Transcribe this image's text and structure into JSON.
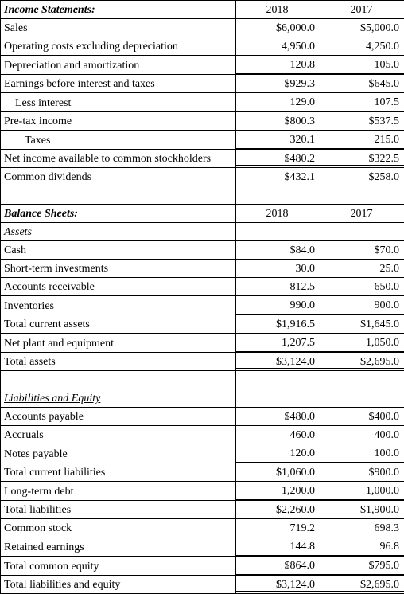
{
  "income": {
    "title": "Income Statements:",
    "col1": "2018",
    "col2": "2017",
    "rows": {
      "sales": {
        "label": "Sales",
        "v1": "$6,000.0",
        "v2": "$5,000.0"
      },
      "opex": {
        "label": "Operating costs excluding depreciation",
        "v1": "4,950.0",
        "v2": "4,250.0"
      },
      "dep": {
        "label": "Depreciation and amortization",
        "v1": "120.8",
        "v2": "105.0"
      },
      "ebit": {
        "label": "Earnings before interest and taxes",
        "v1": "$929.3",
        "v2": "$645.0"
      },
      "interest": {
        "label": "Less interest",
        "v1": "129.0",
        "v2": "107.5"
      },
      "pretax": {
        "label": "Pre-tax income",
        "v1": "$800.3",
        "v2": "$537.5"
      },
      "taxes": {
        "label": "Taxes",
        "v1": "320.1",
        "v2": "215.0"
      },
      "netinc": {
        "label": "Net income available to common stockholders",
        "v1": "$480.2",
        "v2": "$322.5"
      },
      "div": {
        "label": "Common dividends",
        "v1": "$432.1",
        "v2": "$258.0"
      }
    }
  },
  "balance": {
    "title": "Balance Sheets:",
    "col1": "2018",
    "col2": "2017",
    "assets_hdr": "Assets",
    "assets": {
      "cash": {
        "label": "Cash",
        "v1": "$84.0",
        "v2": "$70.0"
      },
      "sti": {
        "label": "Short-term investments",
        "v1": "30.0",
        "v2": "25.0"
      },
      "ar": {
        "label": "Accounts receivable",
        "v1": "812.5",
        "v2": "650.0"
      },
      "inv": {
        "label": "Inventories",
        "v1": "990.0",
        "v2": "900.0"
      },
      "tca": {
        "label": "Total current assets",
        "v1": "$1,916.5",
        "v2": "$1,645.0"
      },
      "ppe": {
        "label": "Net plant and equipment",
        "v1": "1,207.5",
        "v2": "1,050.0"
      },
      "ta": {
        "label": "Total assets",
        "v1": "$3,124.0",
        "v2": "$2,695.0"
      }
    },
    "liab_hdr": "Liabilities and Equity",
    "liab": {
      "ap": {
        "label": "Accounts payable",
        "v1": "$480.0",
        "v2": "$400.0"
      },
      "accr": {
        "label": "Accruals",
        "v1": "460.0",
        "v2": "400.0"
      },
      "np": {
        "label": "Notes payable",
        "v1": "120.0",
        "v2": "100.0"
      },
      "tcl": {
        "label": "Total current liabilities",
        "v1": "$1,060.0",
        "v2": "$900.0"
      },
      "ltd": {
        "label": "Long-term debt",
        "v1": "1,200.0",
        "v2": "1,000.0"
      },
      "tl": {
        "label": "Total liabilities",
        "v1": "$2,260.0",
        "v2": "$1,900.0"
      },
      "cs": {
        "label": "Common stock",
        "v1": "719.2",
        "v2": "698.3"
      },
      "re": {
        "label": "Retained earnings",
        "v1": "144.8",
        "v2": "96.8"
      },
      "tce": {
        "label": "Total common equity",
        "v1": "$864.0",
        "v2": "$795.0"
      },
      "tle": {
        "label": "Total liabilities and equity",
        "v1": "$3,124.0",
        "v2": "$2,695.0"
      }
    }
  }
}
